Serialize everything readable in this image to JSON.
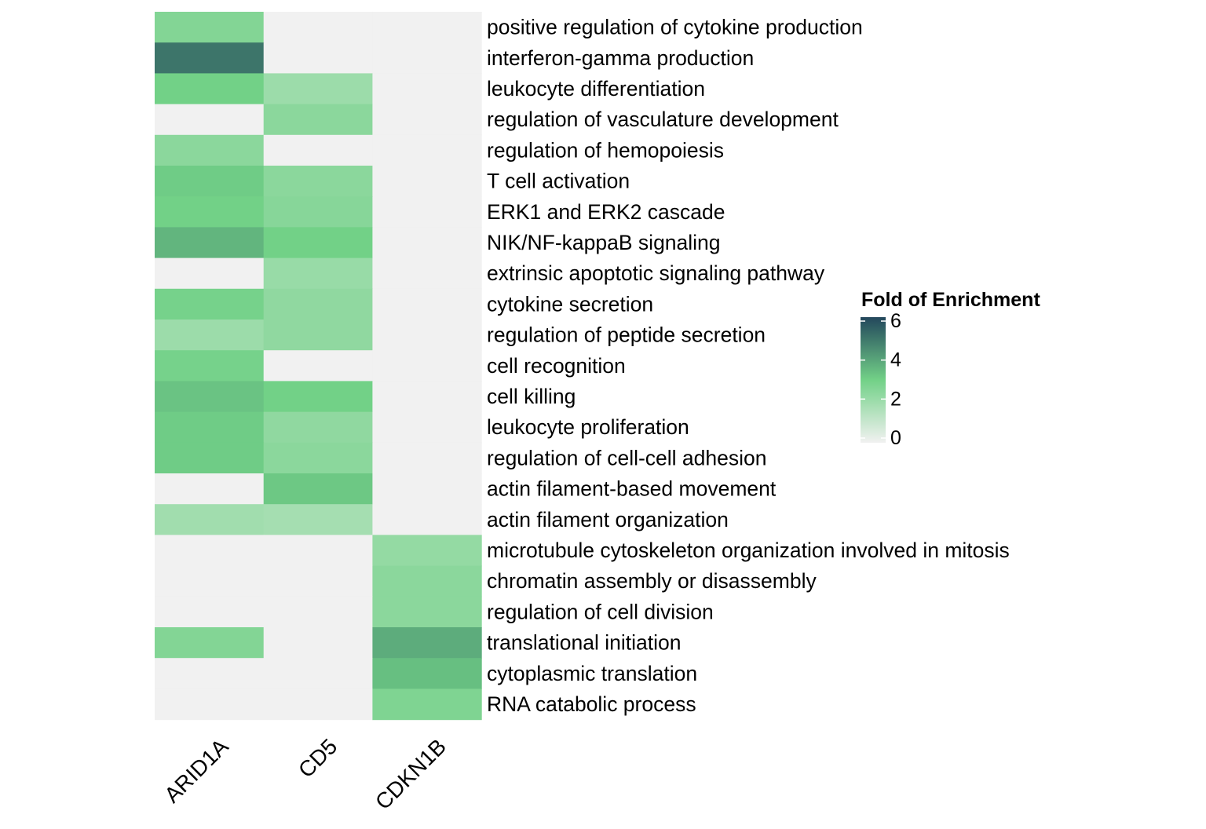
{
  "chart_data": {
    "type": "heatmap",
    "title": "",
    "xlabel": "",
    "ylabel": "",
    "columns": [
      "ARID1A",
      "CD5",
      "CDKN1B"
    ],
    "rows": [
      "positive regulation of cytokine production",
      "interferon-gamma production",
      "leukocyte differentiation",
      "regulation of vasculature development",
      "regulation of hemopoiesis",
      "T cell activation",
      "ERK1 and ERK2 cascade",
      "NIK/NF-kappaB signaling",
      "extrinsic apoptotic signaling pathway",
      "cytokine secretion",
      "regulation of peptide secretion",
      "cell recognition",
      "cell killing",
      "leukocyte proliferation",
      "regulation of cell-cell adhesion",
      "actin filament-based movement",
      "actin filament organization",
      "microtubule cytoskeleton organization involved in mitosis",
      "chromatin assembly or disassembly",
      "regulation of cell division",
      "translational initiation",
      "cytoplasmic translation",
      "RNA catabolic process"
    ],
    "values": [
      [
        2.6,
        0,
        0
      ],
      [
        5.0,
        0,
        0
      ],
      [
        3.0,
        2.0,
        0
      ],
      [
        0,
        2.4,
        0
      ],
      [
        2.4,
        0,
        0
      ],
      [
        3.1,
        2.4,
        0
      ],
      [
        3.0,
        2.5,
        0
      ],
      [
        3.6,
        3.0,
        0
      ],
      [
        0,
        2.1,
        0
      ],
      [
        2.9,
        2.3,
        0
      ],
      [
        2.0,
        2.3,
        0
      ],
      [
        2.9,
        0,
        0
      ],
      [
        3.3,
        3.0,
        0
      ],
      [
        3.1,
        2.3,
        0
      ],
      [
        3.1,
        2.4,
        0
      ],
      [
        0,
        3.2,
        0
      ],
      [
        1.9,
        1.8,
        0
      ],
      [
        0,
        0,
        2.2
      ],
      [
        0,
        0,
        2.4
      ],
      [
        0,
        0,
        2.4
      ],
      [
        2.6,
        0,
        3.8
      ],
      [
        0,
        0,
        3.4
      ],
      [
        0,
        0,
        2.7
      ]
    ],
    "legend": {
      "title": "Fold of Enrichment",
      "ticks": [
        0,
        2,
        4,
        6
      ],
      "range": [
        0,
        6
      ],
      "placement": "right"
    },
    "colors": {
      "scale": [
        {
          "v": 0,
          "color": "#f1f1f1"
        },
        {
          "v": 3,
          "color": "#72d187"
        },
        {
          "v": 6,
          "color": "#23475c"
        }
      ]
    }
  }
}
